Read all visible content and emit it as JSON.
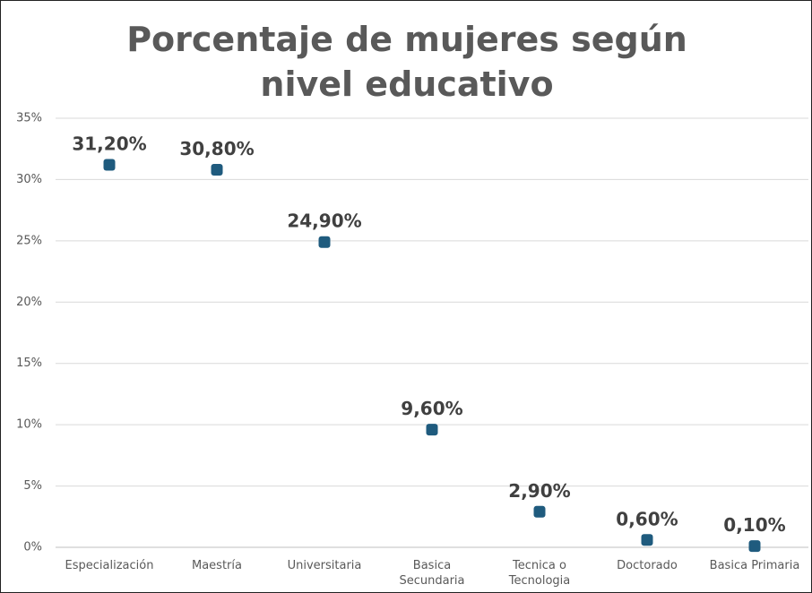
{
  "chart_data": {
    "type": "scatter",
    "title": "Porcentaje de mujeres según nivel educativo",
    "categories": [
      "Especialización",
      "Maestría",
      "Universitaria",
      "Basica Secundaria",
      "Tecnica o Tecnologia",
      "Doctorado",
      "Basica Primaria"
    ],
    "values": [
      31.2,
      30.8,
      24.9,
      9.6,
      2.9,
      0.6,
      0.1
    ],
    "value_labels": [
      "31,20%",
      "30,80%",
      "24,90%",
      "9,60%",
      "2,90%",
      "0,60%",
      "0,10%"
    ],
    "color": "#1f5b7e",
    "ylim": [
      0,
      35
    ],
    "yticks": [
      {
        "value": 0,
        "label": "0%"
      },
      {
        "value": 5,
        "label": "5%"
      },
      {
        "value": 10,
        "label": "10%"
      },
      {
        "value": 15,
        "label": "15%"
      },
      {
        "value": 20,
        "label": "20%"
      },
      {
        "value": 25,
        "label": "25%"
      },
      {
        "value": 30,
        "label": "30%"
      },
      {
        "value": 35,
        "label": "35%"
      }
    ],
    "grid": true
  }
}
